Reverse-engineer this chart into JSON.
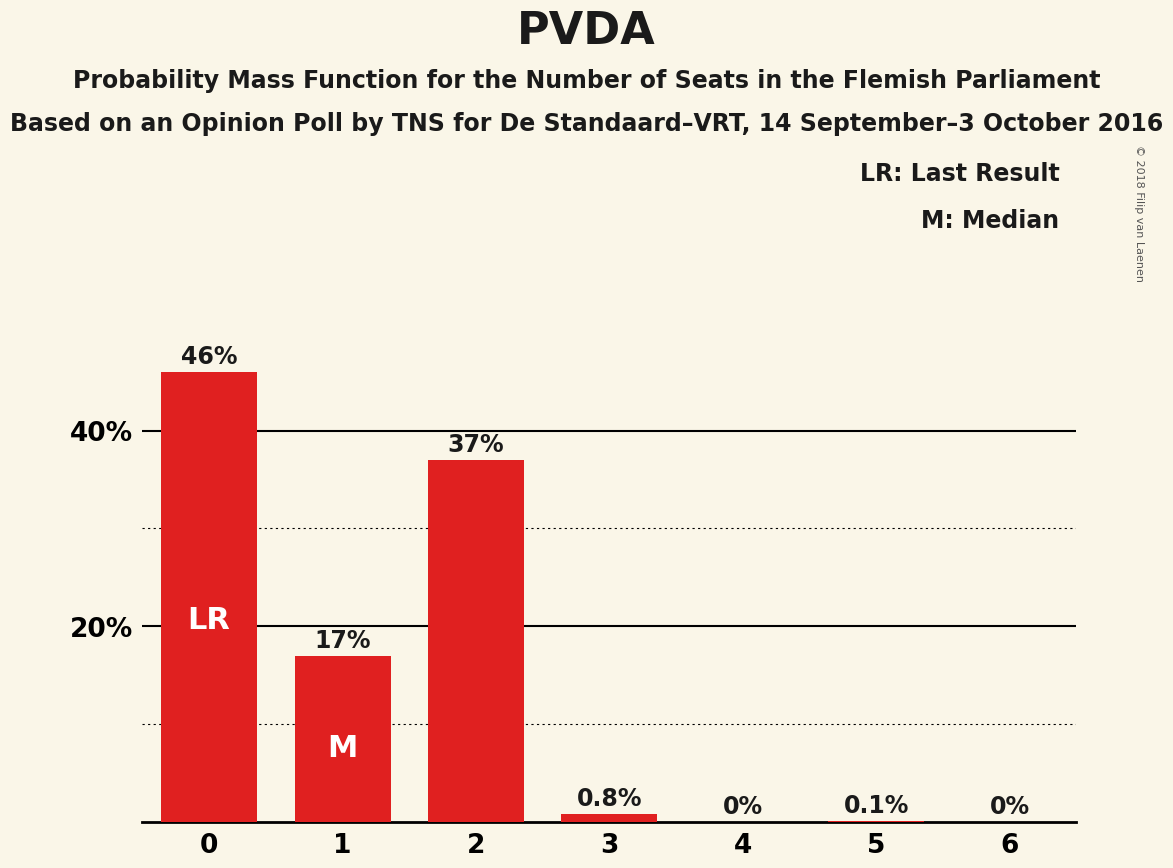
{
  "title": "PVDA",
  "subtitle1": "Probability Mass Function for the Number of Seats in the Flemish Parliament",
  "subtitle2": "Based on an Opinion Poll by TNS for De Standaard–VRT, 14 September–3 October 2016",
  "copyright": "© 2018 Filip van Laenen",
  "categories": [
    0,
    1,
    2,
    3,
    4,
    5,
    6
  ],
  "values": [
    46,
    17,
    37,
    0.8,
    0,
    0.1,
    0
  ],
  "bar_labels": [
    "46%",
    "17%",
    "37%",
    "0.8%",
    "0%",
    "0.1%",
    "0%"
  ],
  "bar_color": "#e02020",
  "background_color": "#faf6e8",
  "text_color": "#1a1a1a",
  "lr_bar_index": 0,
  "median_bar_index": 1,
  "lr_label": "LR",
  "median_label": "M",
  "legend_lr": "LR: Last Result",
  "legend_m": "M: Median",
  "ytick_major": [
    20,
    40
  ],
  "ytick_minor": [
    10,
    30
  ],
  "ylim": [
    0,
    50
  ],
  "xlim": [
    -0.5,
    6.5
  ],
  "bar_width": 0.72,
  "title_fontsize": 32,
  "subtitle_fontsize": 17,
  "bar_label_fontsize": 17,
  "axis_tick_fontsize": 19,
  "inside_label_fontsize": 22,
  "legend_fontsize": 17,
  "copyright_fontsize": 8,
  "copyright_color": "#555555"
}
